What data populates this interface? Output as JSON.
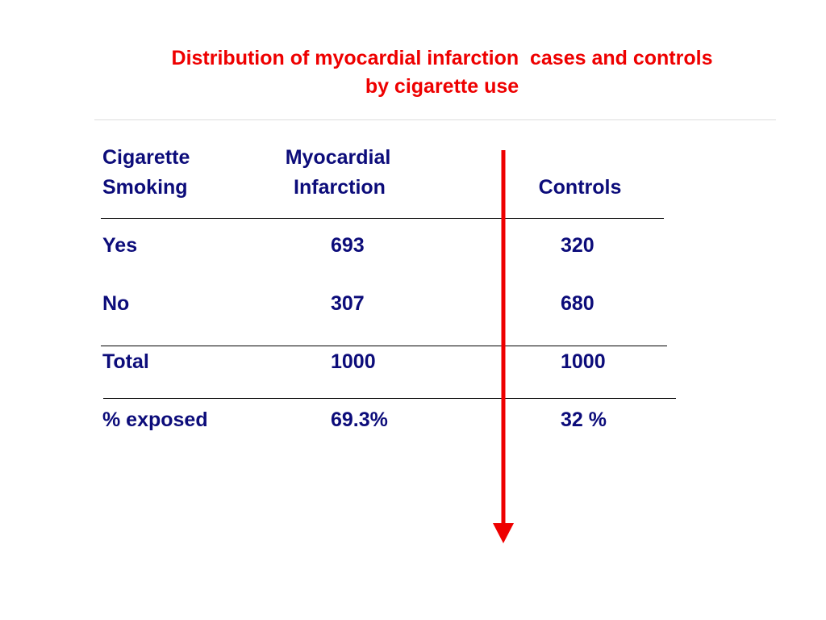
{
  "title": [
    "Distribution of myocardial infarction  cases and controls",
    "by cigarette use"
  ],
  "table": {
    "header": [
      [
        "Cigarette",
        "Smoking"
      ],
      [
        "Myocardial",
        "Infarction"
      ],
      [
        "Controls"
      ]
    ],
    "rows": [
      [
        "Yes",
        "693",
        "320"
      ],
      [
        "No",
        "307",
        "680"
      ],
      [
        "Total",
        "1000",
        "1000"
      ],
      [
        "% exposed",
        "69.3%",
        "32 %"
      ]
    ]
  }
}
